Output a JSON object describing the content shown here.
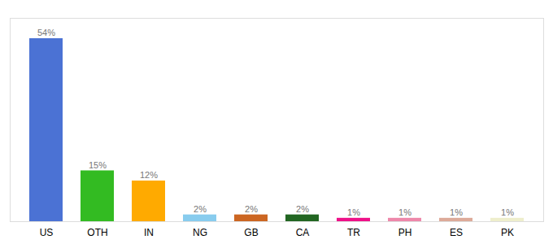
{
  "chart_data": {
    "type": "bar",
    "categories": [
      "US",
      "OTH",
      "IN",
      "NG",
      "GB",
      "CA",
      "TR",
      "PH",
      "ES",
      "PK"
    ],
    "values": [
      54,
      15,
      12,
      2,
      2,
      2,
      1,
      1,
      1,
      1
    ],
    "value_labels": [
      "54%",
      "15%",
      "12%",
      "2%",
      "2%",
      "2%",
      "1%",
      "1%",
      "1%",
      "1%"
    ],
    "colors": [
      "#4b72d4",
      "#33bb22",
      "#ffaa00",
      "#88ccee",
      "#cc6622",
      "#226622",
      "#ee1188",
      "#ee88aa",
      "#ddaa99",
      "#eeeecc"
    ],
    "ylim": [
      0,
      60
    ],
    "data_labels": true,
    "tick_labels": "x",
    "grid": false
  }
}
